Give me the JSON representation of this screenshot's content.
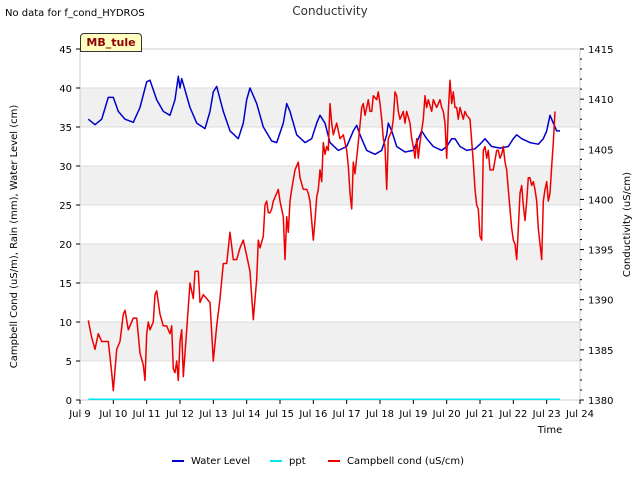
{
  "note": "No data for f_cond_HYDROS",
  "badge": "MB_tule",
  "chart_data": {
    "type": "line",
    "title": "Conductivity",
    "xlabel": "Time",
    "ylabel_left": "Campbell Cond (uS/m), Rain (mm), Water Level (cm)",
    "ylabel_right": "Conductivity (uS/cm)",
    "xlim": [
      9.0,
      24.0
    ],
    "ylim_left": [
      0,
      45
    ],
    "ylim_right": [
      1380,
      1415
    ],
    "x_ticks": [
      "Jul 9",
      "Jul 10",
      "Jul 11",
      "Jul 12",
      "Jul 13",
      "Jul 14",
      "Jul 15",
      "Jul 16",
      "Jul 17",
      "Jul 18",
      "Jul 19",
      "Jul 20",
      "Jul 21",
      "Jul 22",
      "Jul 23",
      "Jul 24"
    ],
    "y_ticks_left": [
      0,
      5,
      10,
      15,
      20,
      25,
      30,
      35,
      40,
      45
    ],
    "y_ticks_right": [
      1380,
      1385,
      1390,
      1395,
      1400,
      1405,
      1410,
      1415
    ],
    "grid": true,
    "legend_position": "bottom",
    "series": [
      {
        "name": "Water Level",
        "axis": "left",
        "color": "#0000cc",
        "points": [
          [
            9.25,
            36.0
          ],
          [
            9.45,
            35.3
          ],
          [
            9.65,
            36.0
          ],
          [
            9.85,
            38.8
          ],
          [
            10.0,
            38.8
          ],
          [
            10.15,
            37.0
          ],
          [
            10.35,
            36.0
          ],
          [
            10.6,
            35.6
          ],
          [
            10.8,
            37.5
          ],
          [
            11.0,
            40.8
          ],
          [
            11.1,
            41.0
          ],
          [
            11.3,
            38.5
          ],
          [
            11.5,
            37.0
          ],
          [
            11.7,
            36.5
          ],
          [
            11.85,
            38.5
          ],
          [
            11.95,
            41.5
          ],
          [
            12.0,
            40.0
          ],
          [
            12.05,
            41.2
          ],
          [
            12.1,
            40.5
          ],
          [
            12.3,
            37.5
          ],
          [
            12.5,
            35.5
          ],
          [
            12.75,
            34.8
          ],
          [
            12.9,
            37.0
          ],
          [
            13.0,
            39.5
          ],
          [
            13.1,
            40.2
          ],
          [
            13.3,
            37.0
          ],
          [
            13.5,
            34.5
          ],
          [
            13.75,
            33.5
          ],
          [
            13.9,
            35.5
          ],
          [
            14.0,
            38.5
          ],
          [
            14.1,
            40.0
          ],
          [
            14.3,
            38.0
          ],
          [
            14.5,
            35.0
          ],
          [
            14.75,
            33.2
          ],
          [
            14.9,
            33.0
          ],
          [
            15.1,
            35.5
          ],
          [
            15.2,
            38.0
          ],
          [
            15.3,
            37.0
          ],
          [
            15.5,
            34.0
          ],
          [
            15.75,
            33.0
          ],
          [
            15.95,
            33.5
          ],
          [
            16.1,
            35.5
          ],
          [
            16.2,
            36.5
          ],
          [
            16.35,
            35.5
          ],
          [
            16.5,
            33.0
          ],
          [
            16.75,
            32.0
          ],
          [
            17.0,
            32.5
          ],
          [
            17.2,
            34.5
          ],
          [
            17.3,
            35.2
          ],
          [
            17.4,
            34.0
          ],
          [
            17.6,
            32.0
          ],
          [
            17.85,
            31.5
          ],
          [
            18.05,
            32.0
          ],
          [
            18.2,
            34.0
          ],
          [
            18.25,
            35.5
          ],
          [
            18.35,
            34.5
          ],
          [
            18.5,
            32.5
          ],
          [
            18.75,
            31.8
          ],
          [
            19.0,
            32.0
          ],
          [
            19.15,
            33.5
          ],
          [
            19.25,
            34.5
          ],
          [
            19.4,
            33.5
          ],
          [
            19.6,
            32.5
          ],
          [
            19.85,
            32.0
          ],
          [
            20.0,
            32.5
          ],
          [
            20.15,
            33.5
          ],
          [
            20.25,
            33.5
          ],
          [
            20.4,
            32.5
          ],
          [
            20.6,
            32.0
          ],
          [
            20.85,
            32.2
          ],
          [
            21.0,
            32.8
          ],
          [
            21.15,
            33.5
          ],
          [
            21.35,
            32.5
          ],
          [
            21.6,
            32.3
          ],
          [
            21.85,
            32.5
          ],
          [
            22.0,
            33.5
          ],
          [
            22.1,
            34.0
          ],
          [
            22.25,
            33.5
          ],
          [
            22.5,
            33.0
          ],
          [
            22.75,
            32.8
          ],
          [
            22.9,
            33.5
          ],
          [
            23.0,
            34.5
          ],
          [
            23.1,
            36.5
          ],
          [
            23.2,
            35.5
          ],
          [
            23.3,
            34.5
          ],
          [
            23.4,
            34.5
          ]
        ]
      },
      {
        "name": "ppt",
        "axis": "left",
        "color": "#00e5ee",
        "points": [
          [
            9.25,
            0.1
          ],
          [
            23.4,
            0.1
          ]
        ]
      },
      {
        "name": "Campbell cond (uS/cm)",
        "axis": "left",
        "color": "#ee0000",
        "points": [
          [
            9.25,
            10.2
          ],
          [
            9.35,
            8.0
          ],
          [
            9.45,
            6.5
          ],
          [
            9.55,
            8.5
          ],
          [
            9.65,
            7.5
          ],
          [
            9.85,
            7.5
          ],
          [
            9.95,
            3.5
          ],
          [
            10.0,
            1.2
          ],
          [
            10.1,
            6.5
          ],
          [
            10.2,
            7.5
          ],
          [
            10.3,
            11.0
          ],
          [
            10.35,
            11.5
          ],
          [
            10.45,
            9.0
          ],
          [
            10.6,
            10.5
          ],
          [
            10.7,
            10.5
          ],
          [
            10.8,
            6.0
          ],
          [
            10.9,
            4.5
          ],
          [
            10.95,
            2.5
          ],
          [
            11.0,
            8.5
          ],
          [
            11.05,
            10.0
          ],
          [
            11.1,
            9.0
          ],
          [
            11.2,
            10.0
          ],
          [
            11.25,
            13.5
          ],
          [
            11.3,
            14.0
          ],
          [
            11.4,
            11.0
          ],
          [
            11.5,
            9.5
          ],
          [
            11.6,
            9.5
          ],
          [
            11.7,
            8.5
          ],
          [
            11.75,
            9.5
          ],
          [
            11.8,
            4.0
          ],
          [
            11.85,
            3.5
          ],
          [
            11.9,
            5.0
          ],
          [
            11.95,
            2.5
          ],
          [
            12.0,
            7.5
          ],
          [
            12.05,
            9.0
          ],
          [
            12.1,
            3.0
          ],
          [
            12.2,
            9.0
          ],
          [
            12.3,
            15.0
          ],
          [
            12.4,
            13.0
          ],
          [
            12.45,
            16.5
          ],
          [
            12.55,
            16.5
          ],
          [
            12.6,
            12.5
          ],
          [
            12.7,
            13.5
          ],
          [
            12.8,
            13.0
          ],
          [
            12.9,
            12.5
          ],
          [
            13.0,
            5.0
          ],
          [
            13.1,
            9.5
          ],
          [
            13.2,
            13.0
          ],
          [
            13.3,
            17.5
          ],
          [
            13.4,
            17.5
          ],
          [
            13.5,
            21.5
          ],
          [
            13.6,
            18.0
          ],
          [
            13.7,
            18.0
          ],
          [
            13.8,
            19.5
          ],
          [
            13.9,
            20.5
          ],
          [
            14.0,
            18.5
          ],
          [
            14.1,
            16.5
          ],
          [
            14.2,
            10.3
          ],
          [
            14.3,
            15.5
          ],
          [
            14.35,
            20.5
          ],
          [
            14.4,
            19.5
          ],
          [
            14.5,
            21.0
          ],
          [
            14.55,
            25.0
          ],
          [
            14.6,
            25.5
          ],
          [
            14.65,
            24.0
          ],
          [
            14.7,
            24.0
          ],
          [
            14.75,
            24.5
          ],
          [
            14.8,
            25.5
          ],
          [
            14.9,
            26.5
          ],
          [
            14.95,
            27.0
          ],
          [
            15.0,
            25.5
          ],
          [
            15.1,
            23.5
          ],
          [
            15.15,
            18.0
          ],
          [
            15.2,
            23.5
          ],
          [
            15.25,
            21.5
          ],
          [
            15.3,
            25.5
          ],
          [
            15.35,
            27.0
          ],
          [
            15.45,
            29.5
          ],
          [
            15.55,
            30.5
          ],
          [
            15.6,
            28.5
          ],
          [
            15.7,
            27.0
          ],
          [
            15.8,
            27.0
          ],
          [
            15.85,
            26.5
          ],
          [
            15.9,
            25.5
          ],
          [
            16.0,
            20.5
          ],
          [
            16.05,
            23.0
          ],
          [
            16.1,
            26.0
          ],
          [
            16.15,
            27.0
          ],
          [
            16.2,
            29.5
          ],
          [
            16.25,
            28.0
          ],
          [
            16.3,
            33.0
          ],
          [
            16.35,
            31.5
          ],
          [
            16.4,
            32.5
          ],
          [
            16.45,
            32.0
          ],
          [
            16.5,
            38.0
          ],
          [
            16.55,
            35.5
          ],
          [
            16.6,
            34.0
          ],
          [
            16.7,
            35.5
          ],
          [
            16.8,
            33.5
          ],
          [
            16.9,
            34.0
          ],
          [
            17.0,
            32.0
          ],
          [
            17.05,
            30.0
          ],
          [
            17.1,
            26.5
          ],
          [
            17.15,
            24.5
          ],
          [
            17.2,
            30.5
          ],
          [
            17.25,
            29.0
          ],
          [
            17.35,
            33.0
          ],
          [
            17.45,
            37.5
          ],
          [
            17.5,
            38.0
          ],
          [
            17.55,
            36.5
          ],
          [
            17.6,
            37.5
          ],
          [
            17.65,
            38.5
          ],
          [
            17.7,
            37.0
          ],
          [
            17.75,
            37.0
          ],
          [
            17.8,
            39.0
          ],
          [
            17.9,
            38.5
          ],
          [
            17.95,
            39.5
          ],
          [
            18.0,
            38.0
          ],
          [
            18.05,
            36.0
          ],
          [
            18.1,
            33.5
          ],
          [
            18.15,
            32.5
          ],
          [
            18.2,
            27.0
          ],
          [
            18.25,
            33.5
          ],
          [
            18.35,
            34.5
          ],
          [
            18.4,
            36.0
          ],
          [
            18.45,
            39.5
          ],
          [
            18.5,
            39.0
          ],
          [
            18.55,
            37.0
          ],
          [
            18.6,
            36.0
          ],
          [
            18.7,
            37.0
          ],
          [
            18.75,
            35.5
          ],
          [
            18.8,
            37.0
          ],
          [
            18.9,
            35.5
          ],
          [
            18.95,
            33.5
          ],
          [
            19.0,
            32.5
          ],
          [
            19.05,
            31.0
          ],
          [
            19.1,
            33.5
          ],
          [
            19.15,
            31.0
          ],
          [
            19.2,
            33.0
          ],
          [
            19.3,
            36.0
          ],
          [
            19.35,
            39.0
          ],
          [
            19.4,
            37.5
          ],
          [
            19.45,
            38.5
          ],
          [
            19.55,
            37.0
          ],
          [
            19.6,
            38.5
          ],
          [
            19.7,
            37.5
          ],
          [
            19.8,
            38.5
          ],
          [
            19.85,
            37.5
          ],
          [
            19.9,
            37.0
          ],
          [
            19.95,
            35.5
          ],
          [
            20.0,
            31.0
          ],
          [
            20.05,
            37.0
          ],
          [
            20.1,
            41.0
          ],
          [
            20.15,
            38.0
          ],
          [
            20.2,
            39.5
          ],
          [
            20.25,
            37.5
          ],
          [
            20.3,
            37.5
          ],
          [
            20.35,
            36.0
          ],
          [
            20.4,
            37.5
          ],
          [
            20.5,
            36.0
          ],
          [
            20.55,
            37.0
          ],
          [
            20.6,
            36.5
          ],
          [
            20.7,
            36.0
          ],
          [
            20.8,
            30.5
          ],
          [
            20.85,
            27.0
          ],
          [
            20.9,
            25.0
          ],
          [
            20.95,
            24.5
          ],
          [
            21.0,
            21.0
          ],
          [
            21.05,
            20.5
          ],
          [
            21.1,
            32.0
          ],
          [
            21.15,
            32.5
          ],
          [
            21.2,
            31.0
          ],
          [
            21.25,
            32.0
          ],
          [
            21.3,
            29.5
          ],
          [
            21.4,
            29.5
          ],
          [
            21.5,
            32.0
          ],
          [
            21.55,
            32.0
          ],
          [
            21.6,
            31.0
          ],
          [
            21.65,
            31.5
          ],
          [
            21.7,
            32.5
          ],
          [
            21.75,
            30.5
          ],
          [
            21.8,
            29.5
          ],
          [
            21.85,
            27.0
          ],
          [
            21.9,
            24.5
          ],
          [
            21.95,
            22.0
          ],
          [
            22.0,
            20.5
          ],
          [
            22.05,
            20.0
          ],
          [
            22.1,
            18.0
          ],
          [
            22.15,
            22.0
          ],
          [
            22.2,
            26.5
          ],
          [
            22.25,
            27.5
          ],
          [
            22.3,
            25.0
          ],
          [
            22.35,
            23.0
          ],
          [
            22.4,
            25.5
          ],
          [
            22.45,
            28.5
          ],
          [
            22.5,
            28.5
          ],
          [
            22.55,
            27.5
          ],
          [
            22.6,
            28.0
          ],
          [
            22.65,
            27.0
          ],
          [
            22.7,
            25.5
          ],
          [
            22.75,
            22.0
          ],
          [
            22.8,
            20.0
          ],
          [
            22.85,
            18.0
          ],
          [
            22.9,
            25.5
          ],
          [
            22.95,
            27.0
          ],
          [
            23.0,
            28.0
          ],
          [
            23.05,
            25.5
          ],
          [
            23.1,
            26.5
          ],
          [
            23.15,
            30.0
          ],
          [
            23.2,
            33.0
          ],
          [
            23.25,
            37.0
          ]
        ]
      }
    ]
  }
}
